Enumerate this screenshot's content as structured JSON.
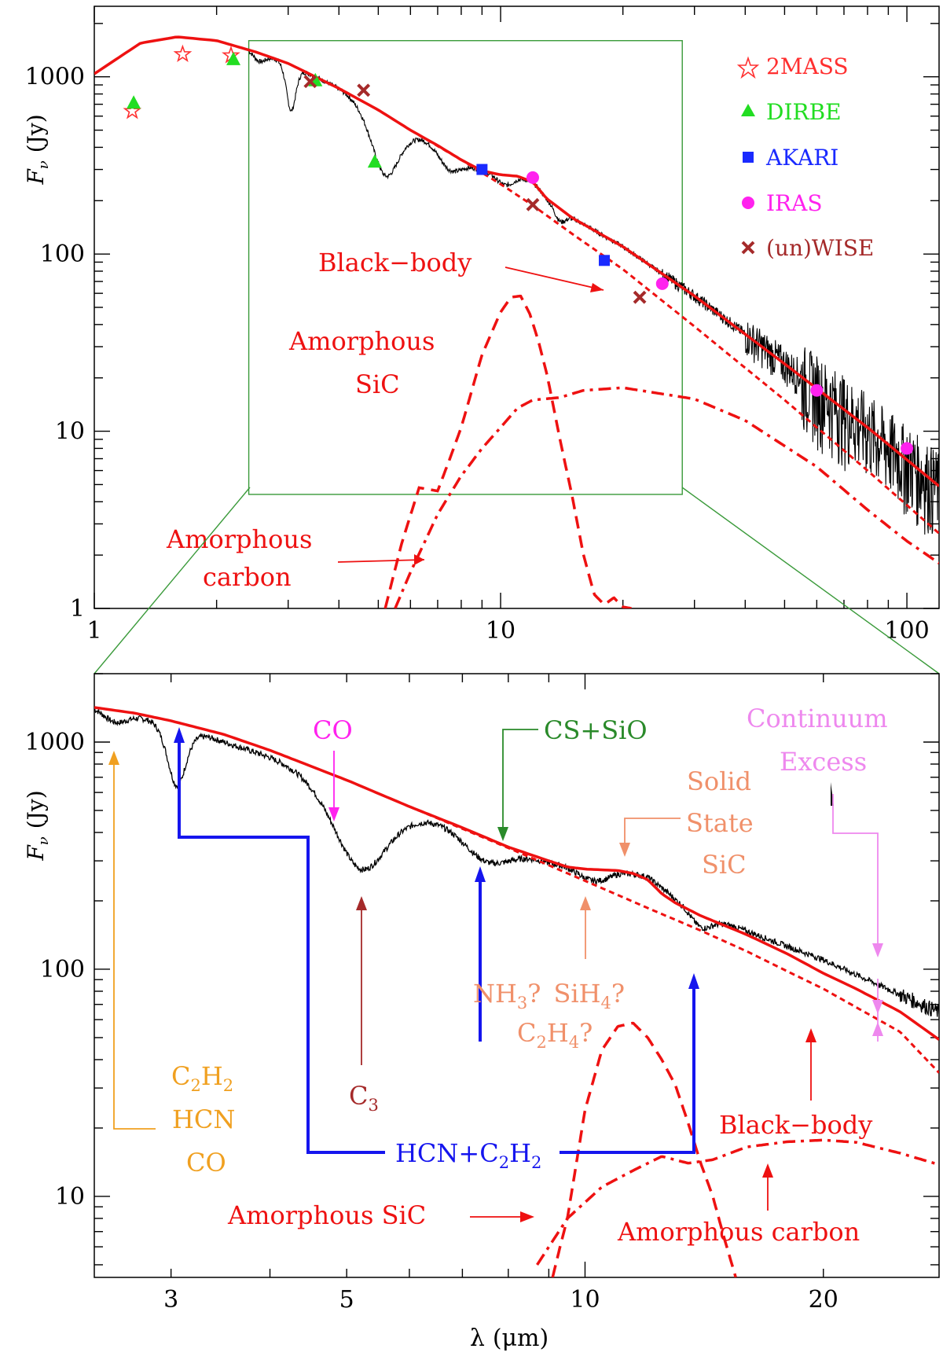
{
  "chart_data": [
    {
      "panel": "top",
      "type": "line",
      "xscale": "log",
      "yscale": "log",
      "xlim": [
        1,
        120
      ],
      "ylim": [
        1,
        2500
      ],
      "ylabel_italic": "F",
      "ylabel_sub": "ν",
      "ylabel_unit": "(Jy)",
      "xticks": [
        {
          "v": 1,
          "label": "1"
        },
        {
          "v": 10,
          "label": "10"
        },
        {
          "v": 100,
          "label": "100"
        }
      ],
      "yticks": [
        {
          "v": 1,
          "label": "1"
        },
        {
          "v": 10,
          "label": "10"
        },
        {
          "v": 100,
          "label": "100"
        },
        {
          "v": 1000,
          "label": "1000"
        }
      ],
      "zoom_box": {
        "x": [
          2.4,
          28
        ],
        "y": [
          4.4,
          1600
        ]
      },
      "legend": [
        {
          "label": "2MASS",
          "marker": "star",
          "color": "#ff3030"
        },
        {
          "label": "DIRBE",
          "marker": "triangle",
          "color": "#22dd22"
        },
        {
          "label": "AKARI",
          "marker": "square",
          "color": "#1a2aff"
        },
        {
          "label": "IRAS",
          "marker": "circle",
          "color": "#ff22ee"
        },
        {
          "label": "(un)WISE",
          "marker": "cross",
          "color": "#a52a2a"
        }
      ],
      "photometry": [
        {
          "survey": "2MASS",
          "points": [
            [
              1.24,
              640
            ],
            [
              1.65,
              1340
            ],
            [
              2.17,
              1320
            ]
          ]
        },
        {
          "survey": "DIRBE",
          "points": [
            [
              1.25,
              710
            ],
            [
              2.2,
              1250
            ],
            [
              3.5,
              950
            ],
            [
              4.9,
              330
            ]
          ]
        },
        {
          "survey": "AKARI",
          "points": [
            [
              9.0,
              300
            ],
            [
              18.0,
              92
            ]
          ]
        },
        {
          "survey": "IRAS",
          "points": [
            [
              12.0,
              270
            ],
            [
              25.0,
              68
            ],
            [
              60.0,
              17
            ],
            [
              100.0,
              8
            ]
          ]
        },
        {
          "survey": "(un)WISE",
          "points": [
            [
              3.4,
              940
            ],
            [
              4.6,
              840
            ],
            [
              12.0,
              190
            ],
            [
              22.0,
              57
            ]
          ]
        }
      ],
      "model_total": [
        [
          1.0,
          1040
        ],
        [
          1.3,
          1550
        ],
        [
          1.6,
          1680
        ],
        [
          2.0,
          1600
        ],
        [
          2.5,
          1380
        ],
        [
          3.0,
          1190
        ],
        [
          4.0,
          860
        ],
        [
          5.0,
          650
        ],
        [
          6.0,
          500
        ],
        [
          7.0,
          410
        ],
        [
          8.0,
          340
        ],
        [
          9.0,
          295
        ],
        [
          10.0,
          280
        ],
        [
          11.0,
          275
        ],
        [
          12.0,
          255
        ],
        [
          13.0,
          205
        ],
        [
          15.0,
          160
        ],
        [
          20.0,
          110
        ],
        [
          30.0,
          58
        ],
        [
          50.0,
          24
        ],
        [
          80.0,
          10.5
        ],
        [
          120.0,
          4.9
        ]
      ],
      "model_blackbody": [
        [
          6.0,
          500
        ],
        [
          8.0,
          340
        ],
        [
          10.0,
          248
        ],
        [
          12.0,
          188
        ],
        [
          15.0,
          130
        ],
        [
          20.0,
          82
        ],
        [
          30.0,
          39
        ],
        [
          50.0,
          15
        ],
        [
          80.0,
          6.0
        ],
        [
          120.0,
          2.65
        ]
      ],
      "model_amorphous_sic": [
        [
          5.2,
          1.0
        ],
        [
          5.7,
          2.3
        ],
        [
          6.3,
          4.8
        ],
        [
          7.0,
          4.6
        ],
        [
          7.5,
          7.0
        ],
        [
          8.0,
          10.5
        ],
        [
          9.0,
          27
        ],
        [
          10.0,
          47
        ],
        [
          10.6,
          57
        ],
        [
          11.2,
          58
        ],
        [
          11.8,
          46
        ],
        [
          12.4,
          32
        ],
        [
          13.0,
          21
        ],
        [
          14.0,
          9.0
        ],
        [
          15.0,
          4.3
        ],
        [
          16.0,
          2.0
        ],
        [
          17.0,
          1.2
        ],
        [
          18.0,
          1.05
        ],
        [
          19.0,
          1.15
        ],
        [
          20.0,
          1.02
        ],
        [
          21.0,
          1.0
        ]
      ],
      "model_amorphous_carbon": [
        [
          5.5,
          1.0
        ],
        [
          6.0,
          1.6
        ],
        [
          7.0,
          3.4
        ],
        [
          8.0,
          5.6
        ],
        [
          9.0,
          8.0
        ],
        [
          10.0,
          10.5
        ],
        [
          11.0,
          13.5
        ],
        [
          12.0,
          15.0
        ],
        [
          14.0,
          15.5
        ],
        [
          16.0,
          17.0
        ],
        [
          20.0,
          17.6
        ],
        [
          30.0,
          15.2
        ],
        [
          40.0,
          11.5
        ],
        [
          60.0,
          6.3
        ],
        [
          80.0,
          3.6
        ],
        [
          100.0,
          2.4
        ],
        [
          120.0,
          1.8
        ]
      ],
      "annotations": {
        "black_body": "Black−body",
        "amorphous_sic_1": "Amorphous",
        "amorphous_sic_2": "SiC",
        "amorphous_carbon_1": "Amorphous",
        "amorphous_carbon_2": "carbon"
      }
    },
    {
      "panel": "bottom",
      "type": "line",
      "xscale": "log",
      "yscale": "log",
      "xlim": [
        2.4,
        28
      ],
      "ylim": [
        4.4,
        2000
      ],
      "xlabel_greek": "λ",
      "xlabel_unit": "(μm)",
      "ylabel_italic": "F",
      "ylabel_sub": "ν",
      "ylabel_unit": "(Jy)",
      "xticks": [
        {
          "v": 3,
          "label": "3"
        },
        {
          "v": 5,
          "label": "5"
        },
        {
          "v": 10,
          "label": "10"
        },
        {
          "v": 20,
          "label": "20"
        }
      ],
      "yticks": [
        {
          "v": 10,
          "label": "10"
        },
        {
          "v": 100,
          "label": "100"
        },
        {
          "v": 1000,
          "label": "1000"
        }
      ],
      "model_total": [
        [
          2.4,
          1420
        ],
        [
          2.7,
          1340
        ],
        [
          3.0,
          1240
        ],
        [
          3.5,
          1080
        ],
        [
          4.0,
          920
        ],
        [
          5.0,
          680
        ],
        [
          6.0,
          520
        ],
        [
          7.0,
          420
        ],
        [
          8.0,
          345
        ],
        [
          9.0,
          300
        ],
        [
          9.5,
          282
        ],
        [
          10.0,
          276
        ],
        [
          11.0,
          272
        ],
        [
          11.5,
          264
        ],
        [
          12.0,
          248
        ],
        [
          12.5,
          215
        ],
        [
          13.0,
          196
        ],
        [
          14.0,
          172
        ],
        [
          16.0,
          142
        ],
        [
          18.0,
          117
        ],
        [
          20.0,
          96
        ],
        [
          22.0,
          82
        ],
        [
          25.0,
          65
        ],
        [
          28.0,
          49
        ]
      ],
      "model_blackbody": [
        [
          6.0,
          520
        ],
        [
          8.0,
          342
        ],
        [
          10.0,
          245
        ],
        [
          12.0,
          186
        ],
        [
          14.0,
          148
        ],
        [
          16.0,
          120
        ],
        [
          18.0,
          98
        ],
        [
          20.0,
          82
        ],
        [
          22.0,
          68
        ],
        [
          25.0,
          53
        ],
        [
          28.0,
          35
        ]
      ],
      "model_amorphous_sic": [
        [
          9.1,
          4.4
        ],
        [
          9.3,
          6.0
        ],
        [
          9.5,
          8.0
        ],
        [
          10.0,
          24
        ],
        [
          10.5,
          44
        ],
        [
          11.0,
          56
        ],
        [
          11.5,
          58
        ],
        [
          12.0,
          50
        ],
        [
          12.5,
          40
        ],
        [
          13.0,
          31
        ],
        [
          13.5,
          21
        ],
        [
          14.0,
          14.0
        ],
        [
          14.5,
          10
        ],
        [
          15.0,
          6.5
        ],
        [
          15.5,
          4.4
        ]
      ],
      "model_amorphous_carbon": [
        [
          8.7,
          5.0
        ],
        [
          9.5,
          8.0
        ],
        [
          10.5,
          11.0
        ],
        [
          11.5,
          13.0
        ],
        [
          12.5,
          15.0
        ],
        [
          13.5,
          14.0
        ],
        [
          14.5,
          14.5
        ],
        [
          16.0,
          16.5
        ],
        [
          18.0,
          17.4
        ],
        [
          20.0,
          17.7
        ],
        [
          22.0,
          17.3
        ],
        [
          25.0,
          15.5
        ],
        [
          28.0,
          13.8
        ]
      ],
      "annotations": {
        "co": "CO",
        "cs_sio": "CS+SiO",
        "solid_state_1": "Solid",
        "solid_state_2": "State",
        "solid_state_3": "SiC",
        "continuum_1": "Continuum",
        "continuum_2": "Excess",
        "c3_base": "C",
        "c3_sub": "3",
        "nh3_base": "NH",
        "nh3_sub": "3",
        "nh3_q": "?",
        "sih4_base": "SiH",
        "sih4_sub": "4",
        "sih4_q": "?",
        "c2h4_c": "C",
        "c2h4_sub1": "2",
        "c2h4_h": "H",
        "c2h4_sub2": "4",
        "c2h4_q": "?",
        "c2h2_c": "C",
        "c2h2_sub1": "2",
        "c2h2_h": "H",
        "c2h2_sub2": "2",
        "hcn": "HCN",
        "co_orange": "CO",
        "hcn_c2h2_pre": "HCN+C",
        "hcn_c2h2_sub1": "2",
        "hcn_c2h2_h": "H",
        "hcn_c2h2_sub2": "2",
        "black_body": "Black−body",
        "amorphous_sic": "Amorphous SiC",
        "amorphous_carbon": "Amorphous carbon"
      }
    }
  ],
  "colors": {
    "model": "#ee1111",
    "spectrum": "#000000",
    "zoom": "#3a9a3a",
    "co": "#ff22ee",
    "cs_sio": "#2a8a2a",
    "solid_state": "#f0906a",
    "continuum": "#ee88ee",
    "c3": "#a52a2a",
    "nh3": "#f0906a",
    "c2h2": "#f0a020",
    "hcn_c2h2": "#1515ee"
  }
}
